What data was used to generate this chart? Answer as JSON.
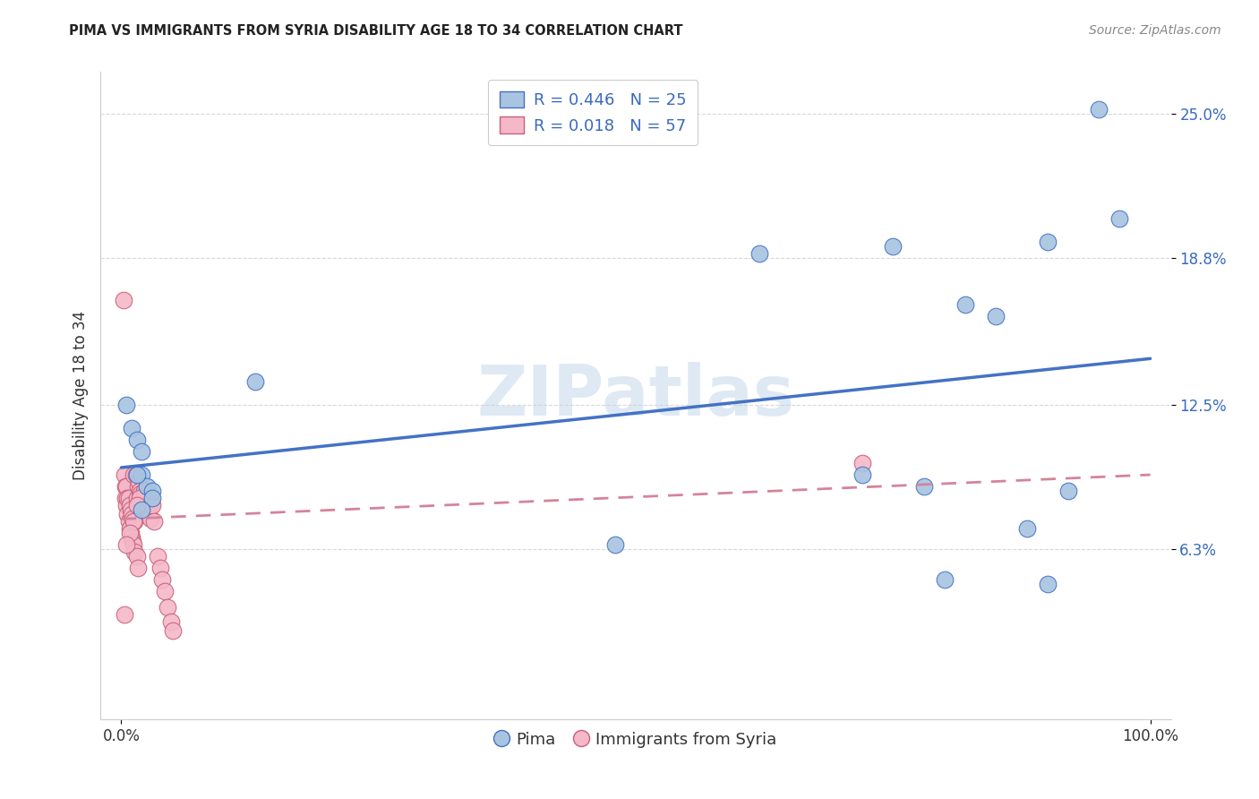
{
  "title": "PIMA VS IMMIGRANTS FROM SYRIA DISABILITY AGE 18 TO 34 CORRELATION CHART",
  "source": "Source: ZipAtlas.com",
  "ylabel": "Disability Age 18 to 34",
  "x_min": 0.0,
  "x_max": 1.0,
  "y_min": 0.0,
  "y_max": 0.25,
  "ytick_values": [
    0.063,
    0.125,
    0.188,
    0.25
  ],
  "xtick_values": [
    0.0,
    1.0
  ],
  "legend_label1": "Pima",
  "legend_label2": "Immigrants from Syria",
  "legend_R1": "0.446",
  "legend_N1": "25",
  "legend_R2": "0.018",
  "legend_N2": "57",
  "pima_color": "#a8c4e0",
  "syria_color": "#f4b8c8",
  "pima_edge_color": "#4472c4",
  "syria_edge_color": "#c8607a",
  "pima_line_color": "#4472c4",
  "syria_line_color": "#d4849a",
  "watermark_text": "ZIPatlas",
  "pima_x": [
    0.005,
    0.01,
    0.015,
    0.02,
    0.02,
    0.025,
    0.03,
    0.03,
    0.02,
    0.015,
    0.13,
    0.48,
    0.62,
    0.72,
    0.78,
    0.82,
    0.85,
    0.88,
    0.9,
    0.9,
    0.92,
    0.95,
    0.97,
    0.8,
    0.75
  ],
  "pima_y": [
    0.125,
    0.115,
    0.11,
    0.105,
    0.095,
    0.09,
    0.088,
    0.085,
    0.08,
    0.095,
    0.135,
    0.065,
    0.19,
    0.095,
    0.09,
    0.168,
    0.163,
    0.072,
    0.195,
    0.048,
    0.088,
    0.252,
    0.205,
    0.05,
    0.193
  ],
  "syria_x": [
    0.002,
    0.003,
    0.004,
    0.004,
    0.005,
    0.005,
    0.006,
    0.006,
    0.007,
    0.007,
    0.008,
    0.008,
    0.009,
    0.009,
    0.01,
    0.01,
    0.011,
    0.011,
    0.012,
    0.012,
    0.013,
    0.013,
    0.014,
    0.015,
    0.015,
    0.016,
    0.016,
    0.017,
    0.018,
    0.019,
    0.02,
    0.021,
    0.022,
    0.023,
    0.024,
    0.025,
    0.026,
    0.027,
    0.028,
    0.029,
    0.03,
    0.032,
    0.035,
    0.038,
    0.04,
    0.042,
    0.045,
    0.048,
    0.05,
    0.022,
    0.018,
    0.015,
    0.012,
    0.008,
    0.005,
    0.003,
    0.72
  ],
  "syria_y": [
    0.17,
    0.095,
    0.09,
    0.085,
    0.09,
    0.082,
    0.085,
    0.078,
    0.085,
    0.075,
    0.082,
    0.072,
    0.08,
    0.07,
    0.078,
    0.068,
    0.076,
    0.066,
    0.095,
    0.065,
    0.075,
    0.062,
    0.095,
    0.085,
    0.06,
    0.09,
    0.055,
    0.092,
    0.088,
    0.087,
    0.083,
    0.085,
    0.082,
    0.079,
    0.088,
    0.085,
    0.08,
    0.078,
    0.076,
    0.083,
    0.082,
    0.075,
    0.06,
    0.055,
    0.05,
    0.045,
    0.038,
    0.032,
    0.028,
    0.088,
    0.085,
    0.082,
    0.075,
    0.07,
    0.065,
    0.035,
    0.1
  ],
  "background_color": "#ffffff",
  "grid_color": "#d8d8d8"
}
